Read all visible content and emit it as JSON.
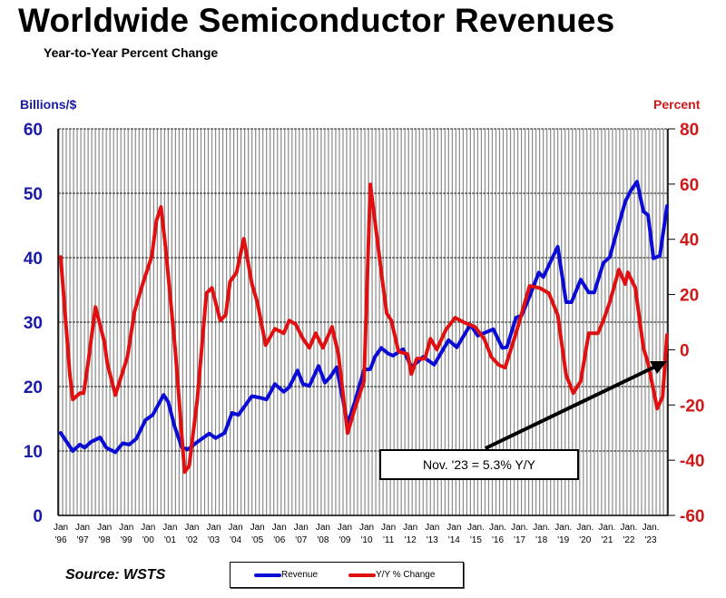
{
  "chart_data": {
    "type": "line",
    "title": "Worldwide Semiconductor Revenues",
    "subtitle": "Year-to-Year Percent Change",
    "ylabel_left": "Billions/$",
    "ylabel_right": "Percent",
    "ylim_left": [
      0,
      60
    ],
    "ylim_right": [
      -60,
      80
    ],
    "yticks_left": [
      "0",
      "10",
      "20",
      "30",
      "40",
      "50",
      "60"
    ],
    "yticks_right": [
      "-60",
      "-40",
      "-20",
      "0",
      "20",
      "40",
      "60",
      "80"
    ],
    "xlim": [
      1996.0,
      2023.83
    ],
    "xtick_labels": [
      [
        "Jan",
        "'96"
      ],
      [
        "Jan",
        "'97"
      ],
      [
        "Jan",
        "'98"
      ],
      [
        "Jan",
        "'99"
      ],
      [
        "Jan",
        "'00"
      ],
      [
        "Jan",
        "'01"
      ],
      [
        "Jan",
        "'02"
      ],
      [
        "Jan",
        "'03"
      ],
      [
        "Jan",
        "'04"
      ],
      [
        "Jan",
        "'05"
      ],
      [
        "Jan",
        "'06"
      ],
      [
        "Jan",
        "'07"
      ],
      [
        "Jan",
        "'08"
      ],
      [
        "Jan",
        "'09"
      ],
      [
        "Jan",
        "'10"
      ],
      [
        "Jan",
        "'11"
      ],
      [
        "Jan",
        "'12"
      ],
      [
        "Jan",
        "'13"
      ],
      [
        "Jan",
        "'14"
      ],
      [
        "Jan.",
        "'15"
      ],
      [
        "Jan.",
        "'16"
      ],
      [
        "Jan.",
        "'17"
      ],
      [
        "Jan.",
        "'18"
      ],
      [
        "Jan.",
        "'19"
      ],
      [
        "Jan.",
        "'20"
      ],
      [
        "Jan.",
        "'21"
      ],
      [
        "Jan.",
        "'22"
      ],
      [
        "Jan.",
        "'23"
      ]
    ],
    "grid": true,
    "legend_position": "bottom-center",
    "series": [
      {
        "name": "Revenue",
        "axis": "left",
        "color": "#0b0bd6",
        "points": [
          [
            1996.08,
            12.8
          ],
          [
            1996.63,
            10.0
          ],
          [
            1996.96,
            11.0
          ],
          [
            1997.17,
            10.5
          ],
          [
            1997.46,
            11.4
          ],
          [
            1997.88,
            12.1
          ],
          [
            1998.17,
            10.5
          ],
          [
            1998.58,
            9.8
          ],
          [
            1998.92,
            11.2
          ],
          [
            1999.21,
            11.0
          ],
          [
            1999.54,
            11.9
          ],
          [
            1999.96,
            14.8
          ],
          [
            2000.29,
            15.6
          ],
          [
            2000.79,
            18.7
          ],
          [
            2001.0,
            17.6
          ],
          [
            2001.29,
            13.8
          ],
          [
            2001.63,
            10.5
          ],
          [
            2001.92,
            10.3
          ],
          [
            2002.33,
            11.4
          ],
          [
            2002.88,
            12.7
          ],
          [
            2003.17,
            12.0
          ],
          [
            2003.58,
            12.8
          ],
          [
            2003.92,
            15.9
          ],
          [
            2004.21,
            15.6
          ],
          [
            2004.83,
            18.5
          ],
          [
            2005.17,
            18.3
          ],
          [
            2005.5,
            18.0
          ],
          [
            2005.88,
            20.4
          ],
          [
            2006.29,
            19.2
          ],
          [
            2006.54,
            19.9
          ],
          [
            2006.92,
            22.5
          ],
          [
            2007.17,
            20.4
          ],
          [
            2007.46,
            20.1
          ],
          [
            2007.88,
            23.2
          ],
          [
            2008.17,
            20.6
          ],
          [
            2008.42,
            21.5
          ],
          [
            2008.71,
            23.0
          ],
          [
            2009.21,
            14.2
          ],
          [
            2009.54,
            17.6
          ],
          [
            2009.96,
            22.6
          ],
          [
            2010.25,
            22.7
          ],
          [
            2010.46,
            24.6
          ],
          [
            2010.75,
            26.0
          ],
          [
            2011.08,
            25.1
          ],
          [
            2011.29,
            24.8
          ],
          [
            2011.75,
            25.8
          ],
          [
            2012.13,
            23.0
          ],
          [
            2012.67,
            24.6
          ],
          [
            2013.17,
            23.4
          ],
          [
            2013.83,
            27.2
          ],
          [
            2014.21,
            26.1
          ],
          [
            2014.83,
            29.6
          ],
          [
            2015.17,
            27.9
          ],
          [
            2015.88,
            28.9
          ],
          [
            2016.29,
            26.0
          ],
          [
            2016.5,
            26.1
          ],
          [
            2016.92,
            30.7
          ],
          [
            2017.17,
            31.0
          ],
          [
            2017.54,
            34.0
          ],
          [
            2017.96,
            37.7
          ],
          [
            2018.17,
            37.0
          ],
          [
            2018.5,
            39.4
          ],
          [
            2018.83,
            41.7
          ],
          [
            2019.21,
            33.1
          ],
          [
            2019.46,
            33.1
          ],
          [
            2019.88,
            36.6
          ],
          [
            2020.25,
            34.6
          ],
          [
            2020.5,
            34.6
          ],
          [
            2020.92,
            39.2
          ],
          [
            2021.21,
            40.1
          ],
          [
            2021.63,
            45.2
          ],
          [
            2021.92,
            48.7
          ],
          [
            2022.17,
            50.4
          ],
          [
            2022.46,
            51.8
          ],
          [
            2022.75,
            47.2
          ],
          [
            2022.96,
            46.6
          ],
          [
            2023.21,
            39.9
          ],
          [
            2023.5,
            40.3
          ],
          [
            2023.83,
            48.0
          ]
        ]
      },
      {
        "name": "Y/Y % Change",
        "axis": "right",
        "color": "#e01010",
        "points": [
          [
            1996.08,
            33.6
          ],
          [
            1996.5,
            -9.1
          ],
          [
            1996.63,
            -18.0
          ],
          [
            1996.96,
            -15.7
          ],
          [
            1997.13,
            -15.7
          ],
          [
            1997.33,
            -4.9
          ],
          [
            1997.67,
            15.5
          ],
          [
            1998.08,
            2.7
          ],
          [
            1998.21,
            -4.9
          ],
          [
            1998.58,
            -16.4
          ],
          [
            1999.13,
            -2.6
          ],
          [
            1999.46,
            13.9
          ],
          [
            1999.83,
            23.8
          ],
          [
            2000.25,
            33.9
          ],
          [
            2000.46,
            46.8
          ],
          [
            2000.67,
            51.7
          ],
          [
            2000.88,
            36.9
          ],
          [
            2001.33,
            -0.6
          ],
          [
            2001.75,
            -44.3
          ],
          [
            2001.96,
            -42.0
          ],
          [
            2002.33,
            -18.0
          ],
          [
            2002.75,
            20.5
          ],
          [
            2003.0,
            22.4
          ],
          [
            2003.38,
            10.6
          ],
          [
            2003.63,
            12.6
          ],
          [
            2003.83,
            24.7
          ],
          [
            2004.13,
            28.0
          ],
          [
            2004.46,
            40.2
          ],
          [
            2004.83,
            23.8
          ],
          [
            2005.08,
            17.2
          ],
          [
            2005.46,
            1.7
          ],
          [
            2005.88,
            7.6
          ],
          [
            2006.29,
            6.0
          ],
          [
            2006.54,
            10.6
          ],
          [
            2006.83,
            9.3
          ],
          [
            2007.17,
            4.0
          ],
          [
            2007.46,
            0.7
          ],
          [
            2007.75,
            6.0
          ],
          [
            2008.08,
            0.7
          ],
          [
            2008.5,
            8.3
          ],
          [
            2008.79,
            -1.6
          ],
          [
            2009.21,
            -30.2
          ],
          [
            2009.54,
            -21.3
          ],
          [
            2009.96,
            -11.4
          ],
          [
            2010.25,
            59.9
          ],
          [
            2010.79,
            25.7
          ],
          [
            2011.0,
            13.2
          ],
          [
            2011.21,
            10.6
          ],
          [
            2011.54,
            -0.6
          ],
          [
            2011.96,
            -1.6
          ],
          [
            2012.13,
            -8.8
          ],
          [
            2012.38,
            -3.2
          ],
          [
            2012.75,
            -3.2
          ],
          [
            2013.0,
            4.0
          ],
          [
            2013.29,
            0.1
          ],
          [
            2013.71,
            7.3
          ],
          [
            2014.13,
            11.6
          ],
          [
            2014.54,
            9.9
          ],
          [
            2015.04,
            8.3
          ],
          [
            2015.46,
            4.0
          ],
          [
            2015.79,
            -2.6
          ],
          [
            2016.13,
            -5.5
          ],
          [
            2016.42,
            -6.5
          ],
          [
            2016.92,
            6.0
          ],
          [
            2017.54,
            23.1
          ],
          [
            2018.0,
            22.4
          ],
          [
            2018.42,
            20.5
          ],
          [
            2018.83,
            12.6
          ],
          [
            2019.21,
            -9.1
          ],
          [
            2019.54,
            -15.7
          ],
          [
            2019.88,
            -11.4
          ],
          [
            2020.25,
            6.0
          ],
          [
            2020.67,
            6.0
          ],
          [
            2020.92,
            10.6
          ],
          [
            2021.21,
            17.2
          ],
          [
            2021.63,
            29.0
          ],
          [
            2021.92,
            23.8
          ],
          [
            2022.04,
            28.0
          ],
          [
            2022.38,
            22.4
          ],
          [
            2022.75,
            0.7
          ],
          [
            2022.96,
            -4.9
          ],
          [
            2023.38,
            -21.3
          ],
          [
            2023.63,
            -17.0
          ],
          [
            2023.83,
            5.3
          ]
        ]
      }
    ],
    "annotation": "Nov. '23 = 5.3% Y/Y",
    "source": "Source: WSTS"
  }
}
